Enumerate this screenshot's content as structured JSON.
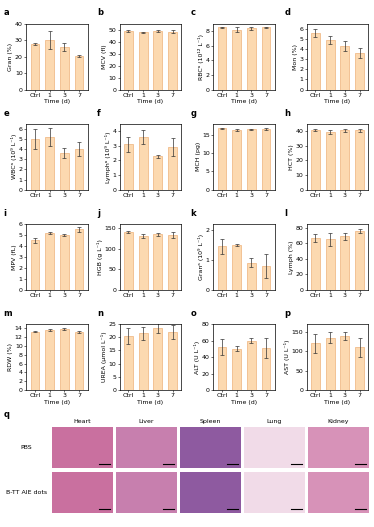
{
  "chart_data": [
    {
      "type": "bar",
      "panel": "a",
      "ylabel": "Gran (%)",
      "xlabel": "Time (d)",
      "categories": [
        "Ctrl",
        "1",
        "3",
        "7"
      ],
      "values": [
        27.5,
        30,
        26,
        20.5
      ],
      "errors": [
        0.5,
        5.5,
        2.5,
        0.5
      ],
      "color": "#fcd9b0",
      "ylim": [
        0,
        40
      ],
      "yticks": [
        0,
        10,
        20,
        30,
        40
      ]
    },
    {
      "type": "bar",
      "panel": "b",
      "ylabel": "MCV (fl)",
      "xlabel": "Time (d)",
      "categories": [
        "Ctrl",
        "1",
        "3",
        "7"
      ],
      "values": [
        49,
        48,
        49,
        48.5
      ],
      "errors": [
        0.5,
        0.5,
        0.6,
        1.0
      ],
      "color": "#fcd9b0",
      "ylim": [
        0,
        55
      ],
      "yticks": [
        0,
        10,
        20,
        30,
        40,
        50
      ]
    },
    {
      "type": "bar",
      "panel": "c",
      "ylabel": "RBCᵃ (10¹² L⁻¹)",
      "xlabel": "Time (d)",
      "categories": [
        "Ctrl",
        "1",
        "3",
        "7"
      ],
      "values": [
        8.5,
        8.2,
        8.4,
        8.5
      ],
      "errors": [
        0.1,
        0.3,
        0.2,
        0.1
      ],
      "color": "#fcd9b0",
      "ylim": [
        0,
        9
      ],
      "yticks": [
        0,
        2,
        4,
        6,
        8
      ]
    },
    {
      "type": "bar",
      "panel": "d",
      "ylabel": "Mon (%)",
      "xlabel": "Time (d)",
      "categories": [
        "Ctrl",
        "1",
        "3",
        "7"
      ],
      "values": [
        5.6,
        4.9,
        4.3,
        3.6
      ],
      "errors": [
        0.4,
        0.4,
        0.5,
        0.5
      ],
      "color": "#fcd9b0",
      "ylim": [
        0,
        6.5
      ],
      "yticks": [
        0,
        1,
        2,
        3,
        4,
        5,
        6
      ]
    },
    {
      "type": "bar",
      "panel": "e",
      "ylabel": "WBCᵃ (10⁹ L⁻¹)",
      "categories": [
        "Ctrl",
        "1",
        "3",
        "7"
      ],
      "values": [
        5.0,
        5.2,
        3.6,
        4.0
      ],
      "errors": [
        1.0,
        0.9,
        0.5,
        0.7
      ],
      "color": "#fcd9b0",
      "ylim": [
        0,
        6.5
      ],
      "yticks": [
        0,
        1,
        2,
        3,
        4,
        5,
        6
      ]
    },
    {
      "type": "bar",
      "panel": "f",
      "ylabel": "Lymphᵃ (10⁹ L⁻¹)",
      "categories": [
        "Ctrl",
        "1",
        "3",
        "7"
      ],
      "values": [
        3.1,
        3.6,
        2.3,
        2.9
      ],
      "errors": [
        0.5,
        0.5,
        0.1,
        0.6
      ],
      "color": "#fcd9b0",
      "ylim": [
        0,
        4.5
      ],
      "yticks": [
        0,
        1,
        2,
        3,
        4
      ]
    },
    {
      "type": "bar",
      "panel": "g",
      "ylabel": "MCH (pg)",
      "categories": [
        "Ctrl",
        "1",
        "3",
        "7"
      ],
      "values": [
        16.8,
        16.3,
        16.5,
        16.6
      ],
      "errors": [
        0.2,
        0.2,
        0.2,
        0.4
      ],
      "color": "#fcd9b0",
      "ylim": [
        0,
        18
      ],
      "yticks": [
        0,
        5,
        10,
        15
      ]
    },
    {
      "type": "bar",
      "panel": "h",
      "ylabel": "HCT (%)",
      "categories": [
        "Ctrl",
        "1",
        "3",
        "7"
      ],
      "values": [
        41,
        39.5,
        40.5,
        40.5
      ],
      "errors": [
        0.8,
        1.5,
        0.8,
        1.2
      ],
      "color": "#fcd9b0",
      "ylim": [
        0,
        45
      ],
      "yticks": [
        0,
        10,
        20,
        30,
        40
      ]
    },
    {
      "type": "bar",
      "panel": "i",
      "ylabel": "MPV (fL)",
      "categories": [
        "Ctrl",
        "1",
        "3",
        "7"
      ],
      "values": [
        4.5,
        5.2,
        5.0,
        5.5
      ],
      "errors": [
        0.2,
        0.1,
        0.1,
        0.2
      ],
      "color": "#fcd9b0",
      "ylim": [
        0,
        6
      ],
      "yticks": [
        0,
        1,
        2,
        3,
        4,
        5,
        6
      ]
    },
    {
      "type": "bar",
      "panel": "j",
      "ylabel": "HGB (g L⁻¹)",
      "categories": [
        "Ctrl",
        "1",
        "3",
        "7"
      ],
      "values": [
        140,
        130,
        135,
        133
      ],
      "errors": [
        2,
        5,
        4,
        8
      ],
      "color": "#fcd9b0",
      "ylim": [
        0,
        160
      ],
      "yticks": [
        0,
        50,
        100,
        150
      ]
    },
    {
      "type": "bar",
      "panel": "k",
      "ylabel": "Granᵃ (10⁹ L⁻¹)",
      "categories": [
        "Ctrl",
        "1",
        "3",
        "7"
      ],
      "values": [
        1.45,
        1.5,
        0.9,
        0.8
      ],
      "errors": [
        0.25,
        0.02,
        0.15,
        0.4
      ],
      "color": "#fcd9b0",
      "ylim": [
        0,
        2.2
      ],
      "yticks": [
        0,
        1,
        2
      ]
    },
    {
      "type": "bar",
      "panel": "l",
      "ylabel": "Lymph (%)",
      "categories": [
        "Ctrl",
        "1",
        "3",
        "7"
      ],
      "values": [
        67,
        65,
        69,
        76
      ],
      "errors": [
        5,
        8,
        5,
        2
      ],
      "color": "#fcd9b0",
      "ylim": [
        0,
        85
      ],
      "yticks": [
        0,
        20,
        40,
        60,
        80
      ]
    },
    {
      "type": "bar",
      "panel": "m",
      "ylabel": "RDW (%)",
      "xlabel": "Time (d)",
      "categories": [
        "Ctrl",
        "1",
        "3",
        "7"
      ],
      "values": [
        13.3,
        13.6,
        13.8,
        13.2
      ],
      "errors": [
        0.2,
        0.2,
        0.2,
        0.2
      ],
      "color": "#fcd9b0",
      "ylim": [
        0,
        15
      ],
      "yticks": [
        0,
        2,
        4,
        6,
        8,
        10,
        12,
        14
      ]
    },
    {
      "type": "bar",
      "panel": "n",
      "ylabel": "UREA (µmol L⁻¹)",
      "xlabel": "Time (d)",
      "categories": [
        "Ctrl",
        "1",
        "3",
        "7"
      ],
      "values": [
        20.5,
        21.5,
        23.5,
        22
      ],
      "errors": [
        3,
        2.5,
        2,
        2.5
      ],
      "color": "#fcd9b0",
      "ylim": [
        0,
        25
      ],
      "yticks": [
        0,
        5,
        10,
        15,
        20,
        25
      ]
    },
    {
      "type": "bar",
      "panel": "o",
      "ylabel": "ALT (U L⁻¹)",
      "xlabel": "Time (d)",
      "categories": [
        "Ctrl",
        "1",
        "3",
        "7"
      ],
      "values": [
        52,
        50,
        60,
        51
      ],
      "errors": [
        10,
        3,
        3,
        12
      ],
      "color": "#fcd9b0",
      "ylim": [
        0,
        80
      ],
      "yticks": [
        0,
        20,
        40,
        60,
        80
      ]
    },
    {
      "type": "bar",
      "panel": "p",
      "ylabel": "AST (U L⁻¹)",
      "xlabel": "Time (d)",
      "categories": [
        "Ctrl",
        "1",
        "3",
        "7"
      ],
      "values": [
        120,
        135,
        140,
        110
      ],
      "errors": [
        25,
        15,
        10,
        25
      ],
      "color": "#fcd9b0",
      "ylim": [
        0,
        170
      ],
      "yticks": [
        0,
        50,
        100,
        150
      ]
    }
  ],
  "histology": {
    "panel": "q",
    "columns": [
      "Heart",
      "Liver",
      "Spleen",
      "Lung",
      "Kidney"
    ],
    "rows": [
      "PBS",
      "B-TT AIE dots"
    ]
  }
}
